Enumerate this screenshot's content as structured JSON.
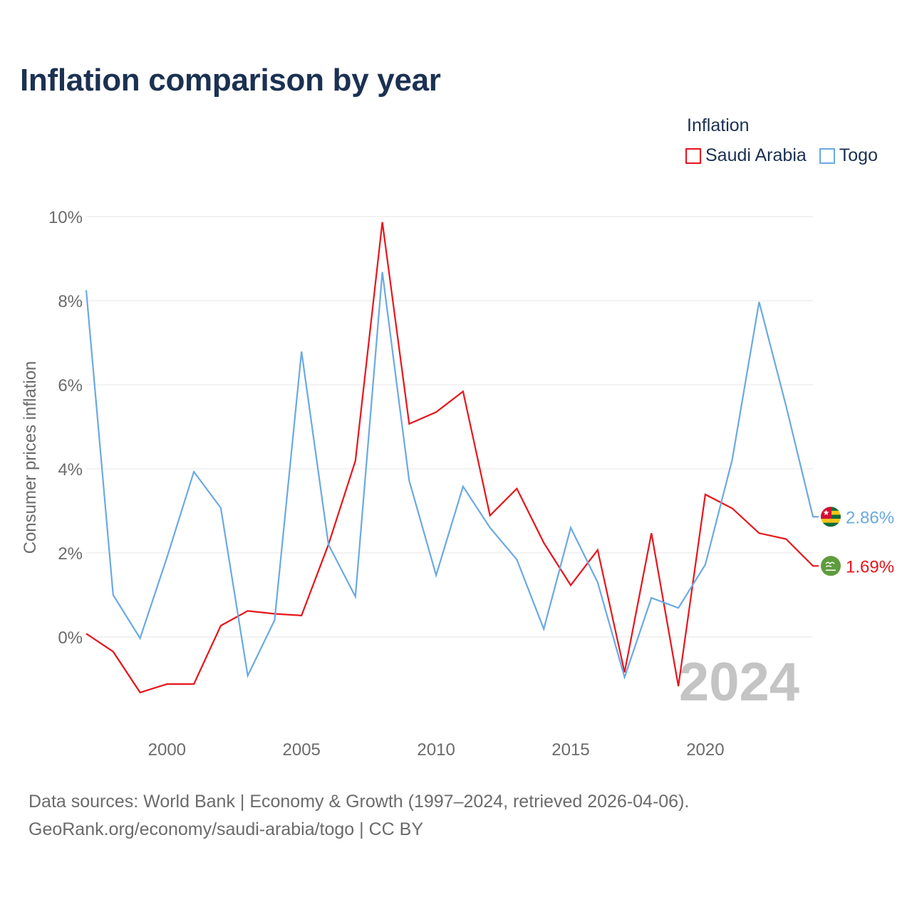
{
  "title": "Inflation comparison by year",
  "legend": {
    "title": "Inflation",
    "items": [
      {
        "label": "Saudi Arabia",
        "color": "#e8141b"
      },
      {
        "label": "Togo",
        "color": "#6aa9e3"
      }
    ]
  },
  "footer": {
    "line1": "Data sources: World Bank | Economy & Growth (1997–2024, retrieved 2026-04-06).",
    "line2": "GeoRank.org/economy/saudi-arabia/togo | CC BY"
  },
  "chart_data": {
    "type": "line",
    "title": "Inflation comparison by year",
    "xlabel": "",
    "ylabel": "Consumer prices inflation",
    "xlim": [
      1997,
      2024
    ],
    "ylim": [
      -2,
      10
    ],
    "grid": true,
    "year_overlay": "2024",
    "x_ticks": [
      2000,
      2005,
      2010,
      2015,
      2020
    ],
    "y_ticks": [
      {
        "value": 0,
        "label": "0%"
      },
      {
        "value": 2,
        "label": "2%"
      },
      {
        "value": 4,
        "label": "4%"
      },
      {
        "value": 6,
        "label": "6%"
      },
      {
        "value": 8,
        "label": "8%"
      },
      {
        "value": 10,
        "label": "10%"
      }
    ],
    "x": [
      1997,
      1998,
      1999,
      2000,
      2001,
      2002,
      2003,
      2004,
      2005,
      2006,
      2007,
      2008,
      2009,
      2010,
      2011,
      2012,
      2013,
      2014,
      2015,
      2016,
      2017,
      2018,
      2019,
      2020,
      2021,
      2022,
      2023,
      2024
    ],
    "series": [
      {
        "name": "Saudi Arabia",
        "color": "#e8141b",
        "end_label": "1.69%",
        "flag": "saudi",
        "values": [
          0.08,
          -0.35,
          -1.32,
          -1.12,
          -1.12,
          0.27,
          0.62,
          0.55,
          0.51,
          2.2,
          4.19,
          9.87,
          5.07,
          5.35,
          5.84,
          2.89,
          3.53,
          2.24,
          1.23,
          2.07,
          -0.84,
          2.47,
          -1.17,
          3.39,
          3.06,
          2.47,
          2.33,
          1.69
        ]
      },
      {
        "name": "Togo",
        "color": "#6aa9e3",
        "end_label": "2.86%",
        "flag": "togo",
        "values": [
          8.25,
          1.0,
          -0.03,
          1.89,
          3.93,
          3.07,
          -0.92,
          0.4,
          6.79,
          2.2,
          0.96,
          8.68,
          3.72,
          1.47,
          3.58,
          2.6,
          1.84,
          0.19,
          2.6,
          1.3,
          -0.96,
          0.93,
          0.69,
          1.72,
          4.22,
          7.97,
          5.5,
          2.86
        ]
      }
    ]
  }
}
